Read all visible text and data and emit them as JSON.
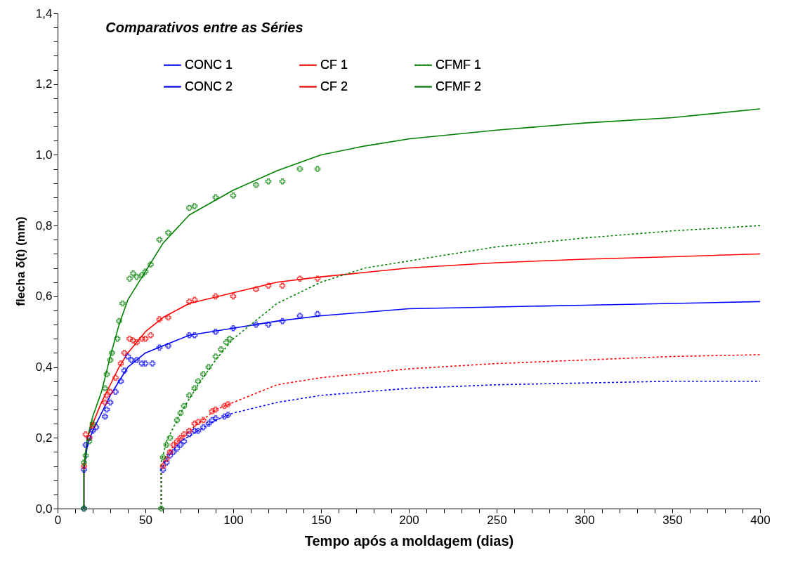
{
  "chart_data": {
    "type": "line",
    "title": "Comparativos entre as Séries",
    "xlabel": "Tempo após a moldagem (dias)",
    "ylabel": "flecha δ(t) (mm)",
    "xlim": [
      0,
      400
    ],
    "ylim": [
      0,
      1.4
    ],
    "xticks": [
      0,
      {
        "value": 10,
        "label": null
      },
      {
        "value": 20,
        "label": null
      },
      {
        "value": 30,
        "label": null
      },
      {
        "value": 40,
        "label": null
      },
      50,
      {
        "value": 60,
        "label": null
      },
      {
        "value": 70,
        "label": null
      },
      {
        "value": 80,
        "label": null
      },
      {
        "value": 90,
        "label": null
      },
      100,
      {
        "value": 110,
        "label": null
      },
      {
        "value": 120,
        "label": null
      },
      {
        "value": 130,
        "label": null
      },
      {
        "value": 140,
        "label": null
      },
      150,
      {
        "value": 160,
        "label": null
      },
      {
        "value": 170,
        "label": null
      },
      {
        "value": 180,
        "label": null
      },
      {
        "value": 190,
        "label": null
      },
      200,
      {
        "value": 210,
        "label": null
      },
      {
        "value": 220,
        "label": null
      },
      {
        "value": 230,
        "label": null
      },
      {
        "value": 240,
        "label": null
      },
      250,
      {
        "value": 260,
        "label": null
      },
      {
        "value": 270,
        "label": null
      },
      {
        "value": 280,
        "label": null
      },
      {
        "value": 290,
        "label": null
      },
      300,
      {
        "value": 310,
        "label": null
      },
      {
        "value": 320,
        "label": null
      },
      {
        "value": 330,
        "label": null
      },
      {
        "value": 340,
        "label": null
      },
      350,
      {
        "value": 360,
        "label": null
      },
      {
        "value": 370,
        "label": null
      },
      {
        "value": 380,
        "label": null
      },
      {
        "value": 390,
        "label": null
      },
      400
    ],
    "yticks": [
      {
        "value": 0,
        "label": "0,0"
      },
      {
        "value": 0.04,
        "label": null
      },
      {
        "value": 0.08,
        "label": null
      },
      {
        "value": 0.12,
        "label": null
      },
      {
        "value": 0.16,
        "label": null
      },
      {
        "value": 0.2,
        "label": "0,2"
      },
      {
        "value": 0.24,
        "label": null
      },
      {
        "value": 0.28,
        "label": null
      },
      {
        "value": 0.32,
        "label": null
      },
      {
        "value": 0.36,
        "label": null
      },
      {
        "value": 0.4,
        "label": "0,4"
      },
      {
        "value": 0.44,
        "label": null
      },
      {
        "value": 0.48,
        "label": null
      },
      {
        "value": 0.52,
        "label": null
      },
      {
        "value": 0.56,
        "label": null
      },
      {
        "value": 0.6,
        "label": "0,6"
      },
      {
        "value": 0.64,
        "label": null
      },
      {
        "value": 0.68,
        "label": null
      },
      {
        "value": 0.72,
        "label": null
      },
      {
        "value": 0.76,
        "label": null
      },
      {
        "value": 0.8,
        "label": "0,8"
      },
      {
        "value": 0.84,
        "label": null
      },
      {
        "value": 0.88,
        "label": null
      },
      {
        "value": 0.92,
        "label": null
      },
      {
        "value": 0.96,
        "label": null
      },
      {
        "value": 1.0,
        "label": "1,0"
      },
      {
        "value": 1.04,
        "label": null
      },
      {
        "value": 1.08,
        "label": null
      },
      {
        "value": 1.12,
        "label": null
      },
      {
        "value": 1.16,
        "label": null
      },
      {
        "value": 1.2,
        "label": "1,2"
      },
      {
        "value": 1.24,
        "label": null
      },
      {
        "value": 1.28,
        "label": null
      },
      {
        "value": 1.32,
        "label": null
      },
      {
        "value": 1.36,
        "label": null
      },
      {
        "value": 1.4,
        "label": "1,4"
      }
    ],
    "grid": false,
    "legend": "top",
    "series": [
      {
        "name": "CONC 1",
        "color": "#0000ff",
        "line_style": "dotted",
        "x": [
          59,
          59,
          62,
          65,
          70,
          80,
          90,
          100,
          125,
          150,
          200,
          250,
          300,
          350,
          400
        ],
        "values": [
          0,
          0.11,
          0.14,
          0.16,
          0.19,
          0.22,
          0.25,
          0.27,
          0.3,
          0.32,
          0.34,
          0.35,
          0.355,
          0.36,
          0.36
        ]
      },
      {
        "name": "CONC 2",
        "color": "#0000ff",
        "line_style": "solid",
        "x": [
          15,
          15,
          17,
          20,
          25,
          30,
          35,
          40,
          50,
          60,
          75,
          100,
          125,
          150,
          200,
          250,
          300,
          350,
          400
        ],
        "values": [
          0,
          0.11,
          0.18,
          0.22,
          0.27,
          0.32,
          0.36,
          0.4,
          0.44,
          0.46,
          0.49,
          0.51,
          0.53,
          0.545,
          0.565,
          0.57,
          0.575,
          0.58,
          0.585
        ]
      },
      {
        "name": "CF 1",
        "color": "#ff0000",
        "line_style": "dotted",
        "x": [
          59,
          59,
          62,
          65,
          70,
          80,
          90,
          100,
          125,
          150,
          200,
          250,
          300,
          350,
          400
        ],
        "values": [
          0,
          0.12,
          0.15,
          0.17,
          0.2,
          0.24,
          0.28,
          0.3,
          0.35,
          0.37,
          0.395,
          0.41,
          0.42,
          0.43,
          0.435
        ]
      },
      {
        "name": "CF 2",
        "color": "#ff0000",
        "line_style": "solid",
        "x": [
          15,
          15,
          17,
          20,
          25,
          30,
          35,
          40,
          50,
          60,
          75,
          100,
          125,
          150,
          200,
          250,
          300,
          350,
          400
        ],
        "values": [
          0,
          0.12,
          0.2,
          0.24,
          0.3,
          0.35,
          0.4,
          0.44,
          0.5,
          0.54,
          0.58,
          0.61,
          0.64,
          0.655,
          0.68,
          0.695,
          0.705,
          0.712,
          0.72
        ]
      },
      {
        "name": "CFMF 1",
        "color": "#008000",
        "line_style": "dotted",
        "x": [
          59,
          59,
          62,
          65,
          70,
          80,
          90,
          100,
          125,
          150,
          175,
          200,
          250,
          300,
          350,
          400
        ],
        "values": [
          0,
          0.13,
          0.19,
          0.22,
          0.27,
          0.35,
          0.42,
          0.48,
          0.58,
          0.64,
          0.68,
          0.7,
          0.74,
          0.765,
          0.785,
          0.8
        ]
      },
      {
        "name": "CFMF 2",
        "color": "#008000",
        "line_style": "solid",
        "x": [
          15,
          15,
          17,
          20,
          25,
          30,
          35,
          40,
          50,
          60,
          75,
          100,
          125,
          150,
          175,
          200,
          250,
          300,
          350,
          400
        ],
        "values": [
          0,
          0.12,
          0.2,
          0.26,
          0.33,
          0.43,
          0.52,
          0.59,
          0.67,
          0.75,
          0.83,
          0.9,
          0.955,
          1.0,
          1.025,
          1.045,
          1.07,
          1.09,
          1.105,
          1.13
        ]
      },
      {
        "type": "scatter",
        "marker": "cross",
        "color": "#0000ff",
        "x": [
          15,
          15,
          16,
          18,
          20,
          22,
          27,
          28,
          30,
          33,
          36,
          38,
          40,
          42,
          45,
          48,
          50,
          54,
          58,
          63,
          75,
          78,
          90,
          100,
          113,
          120,
          128,
          138,
          148
        ],
        "values": [
          0,
          0.11,
          0.18,
          0.2,
          0.22,
          0.23,
          0.26,
          0.28,
          0.3,
          0.33,
          0.36,
          0.39,
          0.43,
          0.42,
          0.42,
          0.41,
          0.41,
          0.41,
          0.455,
          0.46,
          0.49,
          0.49,
          0.5,
          0.51,
          0.52,
          0.52,
          0.53,
          0.545,
          0.55
        ]
      },
      {
        "type": "scatter",
        "marker": "cross",
        "color": "#0000ff",
        "x": [
          60,
          62,
          64,
          66,
          68,
          70,
          72,
          75,
          78,
          80,
          83,
          86,
          88,
          90,
          95,
          97
        ],
        "values": [
          0.11,
          0.13,
          0.15,
          0.16,
          0.17,
          0.18,
          0.19,
          0.21,
          0.22,
          0.22,
          0.23,
          0.24,
          0.25,
          0.255,
          0.26,
          0.265
        ]
      },
      {
        "type": "scatter",
        "marker": "cross",
        "color": "#ff0000",
        "x": [
          15,
          16,
          18,
          20,
          27,
          28,
          30,
          33,
          36,
          38,
          41,
          43,
          45,
          48,
          50,
          53,
          58,
          63,
          75,
          78,
          90,
          100,
          113,
          120,
          128,
          138,
          148
        ],
        "values": [
          0.12,
          0.21,
          0.2,
          0.235,
          0.3,
          0.32,
          0.33,
          0.37,
          0.41,
          0.44,
          0.48,
          0.475,
          0.47,
          0.48,
          0.48,
          0.49,
          0.535,
          0.54,
          0.585,
          0.59,
          0.6,
          0.6,
          0.62,
          0.63,
          0.63,
          0.65,
          0.65
        ]
      },
      {
        "type": "scatter",
        "marker": "cross",
        "color": "#ff0000",
        "x": [
          60,
          62,
          64,
          66,
          68,
          70,
          72,
          75,
          78,
          80,
          83,
          88,
          90,
          95,
          97
        ],
        "values": [
          0.12,
          0.14,
          0.16,
          0.18,
          0.19,
          0.2,
          0.21,
          0.22,
          0.24,
          0.245,
          0.25,
          0.275,
          0.28,
          0.29,
          0.295
        ]
      },
      {
        "type": "scatter",
        "marker": "cross",
        "color": "#008000",
        "x": [
          15,
          15,
          16,
          18,
          20,
          27,
          28,
          30,
          31,
          34,
          35,
          37,
          41,
          43,
          45,
          48,
          50,
          53,
          58,
          63,
          75,
          78,
          90,
          100,
          113,
          120,
          128,
          138,
          148
        ],
        "values": [
          0,
          0.13,
          0.15,
          0.19,
          0.24,
          0.34,
          0.38,
          0.42,
          0.44,
          0.48,
          0.53,
          0.58,
          0.65,
          0.665,
          0.655,
          0.66,
          0.67,
          0.69,
          0.76,
          0.78,
          0.85,
          0.855,
          0.88,
          0.885,
          0.915,
          0.925,
          0.925,
          0.96,
          0.96
        ]
      },
      {
        "type": "scatter",
        "marker": "cross",
        "color": "#008000",
        "x": [
          59,
          60,
          62,
          64,
          68,
          70,
          72,
          75,
          78,
          80,
          83,
          86,
          90,
          93,
          96,
          98
        ],
        "values": [
          0,
          0.145,
          0.18,
          0.2,
          0.25,
          0.27,
          0.29,
          0.32,
          0.34,
          0.36,
          0.38,
          0.4,
          0.43,
          0.45,
          0.47,
          0.48
        ]
      }
    ]
  }
}
